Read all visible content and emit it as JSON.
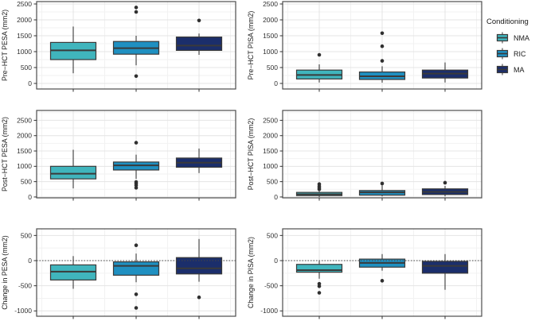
{
  "chart_data": {
    "type": "boxplot",
    "title": "",
    "facets": {
      "rows": 3,
      "cols": 2,
      "x_axis_labels_visible": false
    },
    "legend": {
      "title": "Conditioning",
      "position": "right"
    },
    "groups": [
      {
        "name": "NMA",
        "color": "#40b5bd"
      },
      {
        "name": "RIC",
        "color": "#1f90c1"
      },
      {
        "name": "MA",
        "color": "#1b2e6b"
      }
    ],
    "style": {
      "background": "#ffffff",
      "panel_border": "#4d4d4d",
      "grid_major": "#e4e4e4",
      "grid_minor": "#f2f2f2",
      "box_border": "#3a3a3a",
      "outlier": "#303030",
      "axis_text": "#303030",
      "zero_line": "#444444"
    },
    "panels": [
      {
        "name": "pre-hct-pesa",
        "ylabel": "Pre−HCT PESA (mm2)",
        "ylim": [
          -175,
          2575
        ],
        "yticks": [
          0,
          500,
          1000,
          1500,
          2000,
          2500
        ],
        "zero_line": false,
        "boxes": [
          {
            "group": "NMA",
            "whisker_low": 320,
            "q1": 750,
            "median": 1040,
            "q3": 1290,
            "whisker_high": 1790,
            "outliers": []
          },
          {
            "group": "RIC",
            "whisker_low": 570,
            "q1": 920,
            "median": 1110,
            "q3": 1320,
            "whisker_high": 1500,
            "outliers": [
              2390,
              2250,
              230
            ]
          },
          {
            "group": "MA",
            "whisker_low": 900,
            "q1": 1040,
            "median": 1190,
            "q3": 1460,
            "whisker_high": 1570,
            "outliers": [
              1980
            ]
          }
        ]
      },
      {
        "name": "pre-hct-pisa",
        "ylabel": "Pre−HCT PISA (mm2)",
        "ylim": [
          -175,
          2575
        ],
        "yticks": [
          0,
          500,
          1000,
          1500,
          2000,
          2500
        ],
        "zero_line": false,
        "boxes": [
          {
            "group": "NMA",
            "whisker_low": 30,
            "q1": 140,
            "median": 265,
            "q3": 420,
            "whisker_high": 600,
            "outliers": [
              900
            ]
          },
          {
            "group": "RIC",
            "whisker_low": 25,
            "q1": 125,
            "median": 225,
            "q3": 360,
            "whisker_high": 540,
            "outliers": [
              1580,
              1170,
              710
            ]
          },
          {
            "group": "MA",
            "whisker_low": 30,
            "q1": 170,
            "median": 310,
            "q3": 420,
            "whisker_high": 660,
            "outliers": []
          }
        ]
      },
      {
        "name": "post-hct-pesa",
        "ylabel": "Post−HCT PESA (mm2)",
        "ylim": [
          -28,
          2822
        ],
        "yticks": [
          0,
          500,
          1000,
          1500,
          2000,
          2500
        ],
        "zero_line": false,
        "boxes": [
          {
            "group": "NMA",
            "whisker_low": 280,
            "q1": 590,
            "median": 760,
            "q3": 1000,
            "whisker_high": 1540,
            "outliers": []
          },
          {
            "group": "RIC",
            "whisker_low": 590,
            "q1": 880,
            "median": 1030,
            "q3": 1140,
            "whisker_high": 1380,
            "outliers": [
              1770,
              490,
              440,
              380,
              300
            ]
          },
          {
            "group": "MA",
            "whisker_low": 780,
            "q1": 970,
            "median": 1120,
            "q3": 1270,
            "whisker_high": 1580,
            "outliers": []
          }
        ]
      },
      {
        "name": "post-hct-pisa",
        "ylabel": "Post−HCT PISA (mm2)",
        "ylim": [
          -28,
          2822
        ],
        "yticks": [
          0,
          500,
          1000,
          1500,
          2000,
          2500
        ],
        "zero_line": false,
        "boxes": [
          {
            "group": "NMA",
            "whisker_low": 0,
            "q1": 45,
            "median": 90,
            "q3": 150,
            "whisker_high": 185,
            "outliers": [
              250,
              300,
              350,
              420
            ]
          },
          {
            "group": "RIC",
            "whisker_low": 20,
            "q1": 60,
            "median": 150,
            "q3": 210,
            "whisker_high": 380,
            "outliers": [
              440
            ]
          },
          {
            "group": "MA",
            "whisker_low": 20,
            "q1": 80,
            "median": 165,
            "q3": 265,
            "whisker_high": 360,
            "outliers": [
              465
            ]
          }
        ]
      },
      {
        "name": "change-in-pesa",
        "ylabel": "Change in PESA (mm2)",
        "ylim": [
          -1106,
          632
        ],
        "yticks": [
          -1000,
          -500,
          0,
          500
        ],
        "zero_line": true,
        "boxes": [
          {
            "group": "NMA",
            "whisker_low": -560,
            "q1": -385,
            "median": -220,
            "q3": -85,
            "whisker_high": 90,
            "outliers": []
          },
          {
            "group": "RIC",
            "whisker_low": -430,
            "q1": -290,
            "median": -105,
            "q3": -25,
            "whisker_high": 140,
            "outliers": [
              305,
              -670,
              -940
            ]
          },
          {
            "group": "MA",
            "whisker_low": -420,
            "q1": -265,
            "median": -155,
            "q3": 60,
            "whisker_high": 430,
            "outliers": [
              -730
            ]
          }
        ]
      },
      {
        "name": "change-in-pisa",
        "ylabel": "Change in PISA (mm2)",
        "ylim": [
          -1106,
          632
        ],
        "yticks": [
          -1000,
          -500,
          0,
          500
        ],
        "zero_line": true,
        "boxes": [
          {
            "group": "NMA",
            "whisker_low": -360,
            "q1": -230,
            "median": -190,
            "q3": -75,
            "whisker_high": -10,
            "outliers": [
              -460,
              -510,
              -640
            ]
          },
          {
            "group": "RIC",
            "whisker_low": -200,
            "q1": -130,
            "median": -45,
            "q3": 30,
            "whisker_high": 130,
            "outliers": [
              -400
            ]
          },
          {
            "group": "MA",
            "whisker_low": -580,
            "q1": -250,
            "median": -105,
            "q3": -15,
            "whisker_high": 130,
            "outliers": []
          }
        ]
      }
    ]
  }
}
